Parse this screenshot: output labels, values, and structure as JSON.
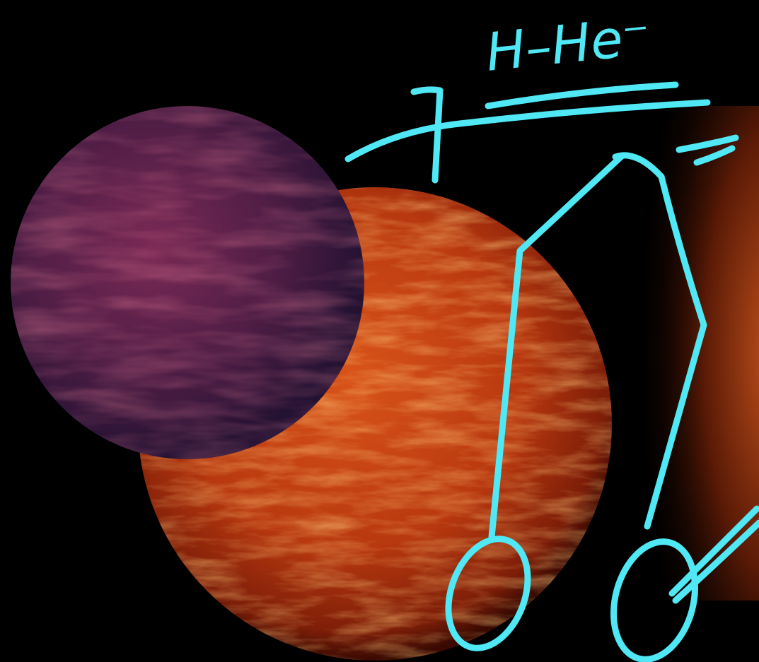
{
  "annotation": {
    "text": "H–He⁻"
  }
}
